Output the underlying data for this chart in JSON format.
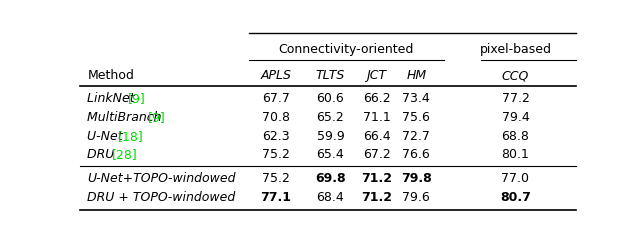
{
  "figsize": [
    6.4,
    2.31
  ],
  "dpi": 100,
  "bg_color": "#ffffff",
  "font_size": 9.0,
  "green_color": "#00dd00",
  "rows": [
    {
      "parts": [
        {
          "text": "LinkNet ",
          "color": "black",
          "bold": false,
          "italic": true
        },
        {
          "text": "[9]",
          "color": "#00dd00",
          "bold": false,
          "italic": false
        }
      ],
      "values": [
        "67.7",
        "60.6",
        "66.2",
        "73.4",
        "77.2"
      ],
      "bold": [
        false,
        false,
        false,
        false,
        false
      ]
    },
    {
      "parts": [
        {
          "text": "MultiBranch ",
          "color": "black",
          "bold": false,
          "italic": true
        },
        {
          "text": "[9]",
          "color": "#00dd00",
          "bold": false,
          "italic": false
        }
      ],
      "values": [
        "70.8",
        "65.2",
        "71.1",
        "75.6",
        "79.4"
      ],
      "bold": [
        false,
        false,
        false,
        false,
        false
      ]
    },
    {
      "parts": [
        {
          "text": "U-Net ",
          "color": "black",
          "bold": false,
          "italic": true
        },
        {
          "text": "[18]",
          "color": "#00dd00",
          "bold": false,
          "italic": false
        }
      ],
      "values": [
        "62.3",
        "59.9",
        "66.4",
        "72.7",
        "68.8"
      ],
      "bold": [
        false,
        false,
        false,
        false,
        false
      ]
    },
    {
      "parts": [
        {
          "text": "DRU ",
          "color": "black",
          "bold": false,
          "italic": true
        },
        {
          "text": "[28]",
          "color": "#00dd00",
          "bold": false,
          "italic": false
        }
      ],
      "values": [
        "75.2",
        "65.4",
        "67.2",
        "76.6",
        "80.1"
      ],
      "bold": [
        false,
        false,
        false,
        false,
        false
      ]
    },
    {
      "parts": [
        {
          "text": "U-Net+TOPO-windowed",
          "color": "black",
          "bold": false,
          "italic": true
        }
      ],
      "values": [
        "75.2",
        "69.8",
        "71.2",
        "79.8",
        "77.0"
      ],
      "bold": [
        false,
        true,
        true,
        true,
        false
      ]
    },
    {
      "parts": [
        {
          "text": "DRU + TOPO-windowed",
          "color": "black",
          "bold": false,
          "italic": true
        }
      ],
      "values": [
        "77.1",
        "68.4",
        "71.2",
        "79.6",
        "80.7"
      ],
      "bold": [
        true,
        false,
        true,
        false,
        true
      ]
    }
  ],
  "metric_headers": [
    "APLS",
    "TLTS",
    "JCT",
    "HM",
    "CCQ"
  ],
  "group1_header": "Connectivity-oriented",
  "group2_header": "pixel-based",
  "method_header": "Method"
}
